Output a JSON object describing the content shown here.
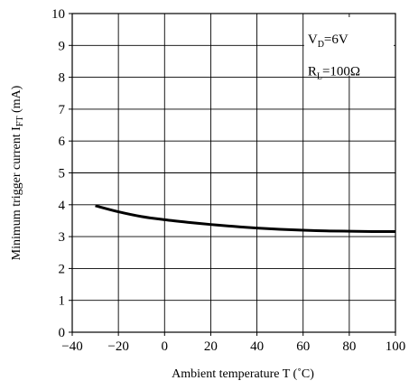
{
  "chart_data": {
    "type": "line",
    "title": "",
    "xlabel": "Ambient temperature  T (˚C)",
    "ylabel": "Minimum trigger current I",
    "ylabel_subscript": "FT",
    "ylabel_unit": " (mA)",
    "xlim": [
      -40,
      100
    ],
    "ylim": [
      0,
      10
    ],
    "x_ticks": [
      -40,
      -20,
      0,
      20,
      40,
      60,
      80,
      100
    ],
    "x_tick_labels": [
      "−40",
      "−20",
      "0",
      "20",
      "40",
      "60",
      "80",
      "100"
    ],
    "y_ticks": [
      0,
      1,
      2,
      3,
      4,
      5,
      6,
      7,
      8,
      9,
      10
    ],
    "y_tick_labels": [
      "0",
      "1",
      "2",
      "3",
      "4",
      "5",
      "6",
      "7",
      "8",
      "9",
      "10"
    ],
    "grid": true,
    "legend": "none",
    "annotations": [
      {
        "main": "V",
        "sub": "D",
        "rest": "=6V"
      },
      {
        "main": "R",
        "sub": "L",
        "rest": "=100Ω"
      }
    ],
    "series": [
      {
        "x": [
          -30,
          -20,
          -10,
          0,
          10,
          20,
          30,
          40,
          50,
          60,
          70,
          80,
          90,
          100
        ],
        "y": [
          3.97,
          3.78,
          3.63,
          3.53,
          3.45,
          3.38,
          3.32,
          3.27,
          3.23,
          3.2,
          3.18,
          3.17,
          3.16,
          3.16
        ]
      }
    ],
    "colors": {
      "line": "#000000",
      "grid": "#000000",
      "background": "#ffffff"
    }
  }
}
